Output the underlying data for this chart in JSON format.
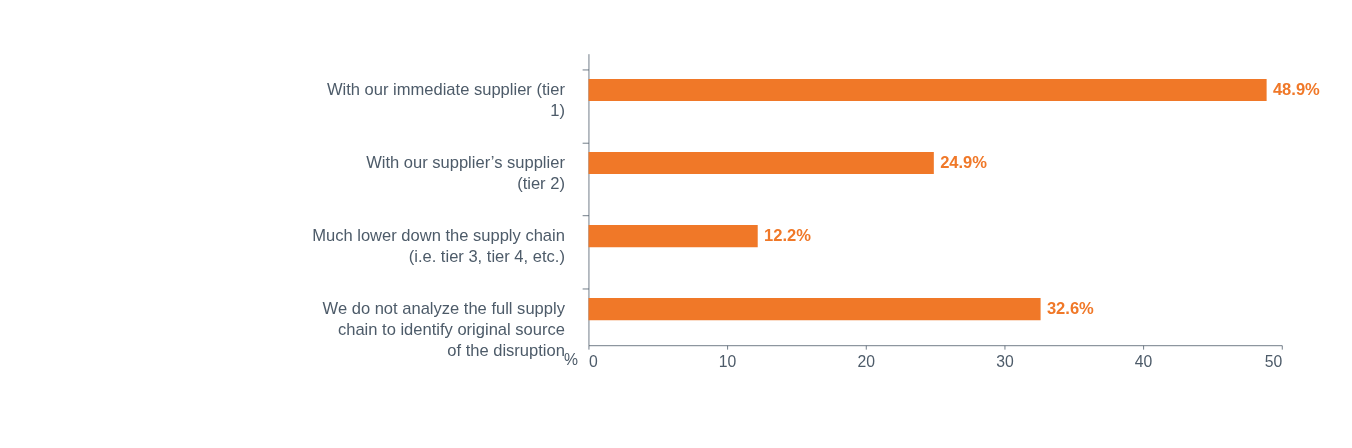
{
  "chart_data": {
    "type": "bar",
    "orientation": "horizontal",
    "categories": [
      "With our immediate supplier (tier 1)",
      "With our supplier’s supplier (tier 2)",
      "Much lower down the supply chain (i.e. tier 3, tier 4, etc.)",
      "We do not analyze the full supply chain to identify original source of the disruption"
    ],
    "values": [
      48.9,
      24.9,
      12.2,
      32.6
    ],
    "value_labels": [
      "48.9%",
      "24.9%",
      "12.2%",
      "32.6%"
    ],
    "color": "#f07828",
    "xlabel": "%",
    "xlim": [
      0,
      50
    ],
    "xticks": [
      0,
      10,
      20,
      30,
      40,
      50
    ],
    "grid": false
  }
}
